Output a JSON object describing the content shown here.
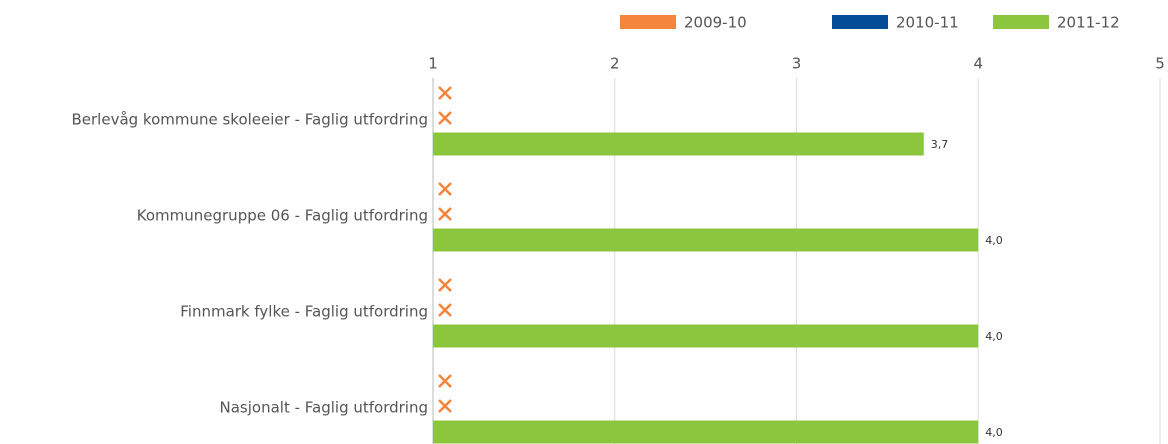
{
  "chart_data": {
    "type": "bar",
    "orientation": "horizontal",
    "categories": [
      "Berlevåg kommune skoleeier - Faglig utfordring",
      "Kommunegruppe 06 - Faglig utfordring",
      "Finnmark fylke - Faglig utfordring",
      "Nasjonalt - Faglig utfordring"
    ],
    "series": [
      {
        "name": "2009-10",
        "color": "#f5843c",
        "values": [
          null,
          null,
          null,
          null
        ]
      },
      {
        "name": "2010-11",
        "color": "#034c96",
        "values": [
          null,
          null,
          null,
          null
        ]
      },
      {
        "name": "2011-12",
        "color": "#8cc63f",
        "values": [
          3.7,
          4.0,
          4.0,
          4.0
        ],
        "value_labels": [
          "3,7",
          "4,0",
          "4,0",
          "4,0"
        ]
      }
    ],
    "xlim": [
      1,
      5
    ],
    "xticks": [
      1,
      2,
      3,
      4,
      5
    ],
    "grid": true,
    "legend": "top-right"
  }
}
